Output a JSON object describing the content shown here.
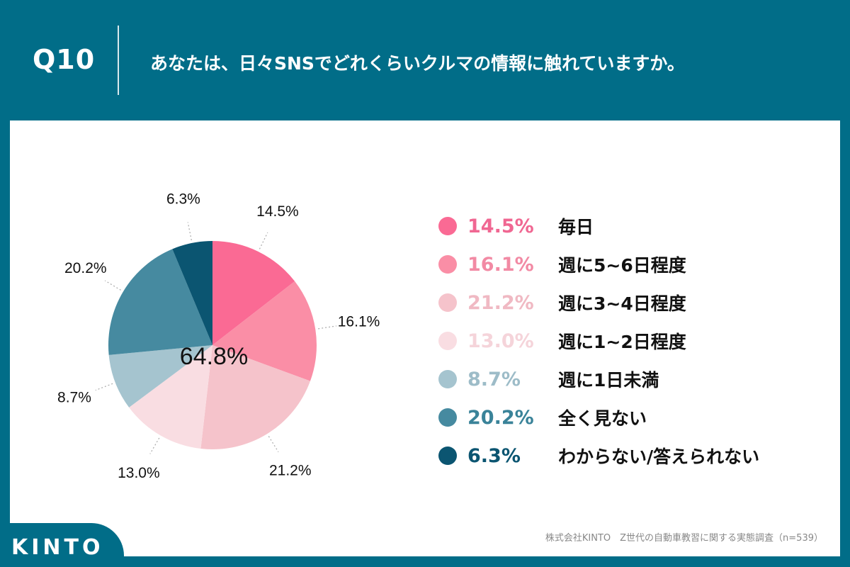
{
  "header": {
    "question_number": "Q10",
    "question_text": "あなたは、日々SNSでどれくらいクルマの情報に触れていますか。"
  },
  "chart_data": {
    "type": "pie",
    "center_label": "64.8%",
    "categories": [
      "毎日",
      "週に5~6日程度",
      "週に3~4日程度",
      "週に1~2日程度",
      "週に1日未満",
      "全く見ない",
      "わからない/答えられない"
    ],
    "values": [
      14.5,
      16.1,
      21.2,
      13.0,
      8.7,
      20.2,
      6.3
    ],
    "value_labels": [
      "14.5%",
      "16.1%",
      "21.2%",
      "13.0%",
      "8.7%",
      "20.2%",
      "6.3%"
    ],
    "colors": [
      "#fa6a94",
      "#fa8ea6",
      "#f5c3cb",
      "#f9dde2",
      "#a5c4cf",
      "#468aa0",
      "#0b5571"
    ],
    "legend_pct_colors": [
      "#f06792",
      "#f28aa4",
      "#f0b9c3",
      "#f5d4da",
      "#9dbcc8",
      "#3a8399",
      "#0b5571"
    ],
    "start_angle": "12 o'clock",
    "direction": "clockwise"
  },
  "footer": {
    "source": "株式会社KINTO　Z世代の自動車教習に関する実態調査（n=539）",
    "logo": "KINTO"
  }
}
